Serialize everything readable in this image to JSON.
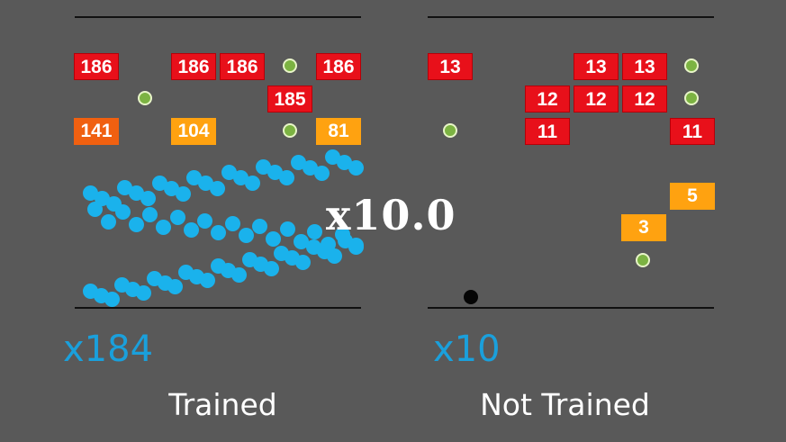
{
  "speed_multiplier": "x10.0",
  "colors": {
    "background": "#595959",
    "brick_red": "#e8101a",
    "brick_orange_dark": "#f06010",
    "brick_orange": "#ffa210",
    "ball": "#1ab2ec",
    "pickup": "#7cb342"
  },
  "left_panel": {
    "caption": "Trained",
    "ball_count": "x184",
    "bricks": [
      {
        "value": "186",
        "color": "red"
      },
      {
        "value": "186",
        "color": "red"
      },
      {
        "value": "186",
        "color": "red"
      },
      {
        "value": "186",
        "color": "red"
      },
      {
        "value": "185",
        "color": "red"
      },
      {
        "value": "141",
        "color": "orange-dark"
      },
      {
        "value": "104",
        "color": "orange"
      },
      {
        "value": "81",
        "color": "orange"
      }
    ]
  },
  "right_panel": {
    "caption": "Not Trained",
    "ball_count": "x10",
    "bricks": [
      {
        "value": "13",
        "color": "red"
      },
      {
        "value": "13",
        "color": "red"
      },
      {
        "value": "13",
        "color": "red"
      },
      {
        "value": "12",
        "color": "red"
      },
      {
        "value": "12",
        "color": "red"
      },
      {
        "value": "12",
        "color": "red"
      },
      {
        "value": "11",
        "color": "red"
      },
      {
        "value": "11",
        "color": "red"
      },
      {
        "value": "5",
        "color": "orange"
      },
      {
        "value": "3",
        "color": "orange"
      }
    ]
  }
}
